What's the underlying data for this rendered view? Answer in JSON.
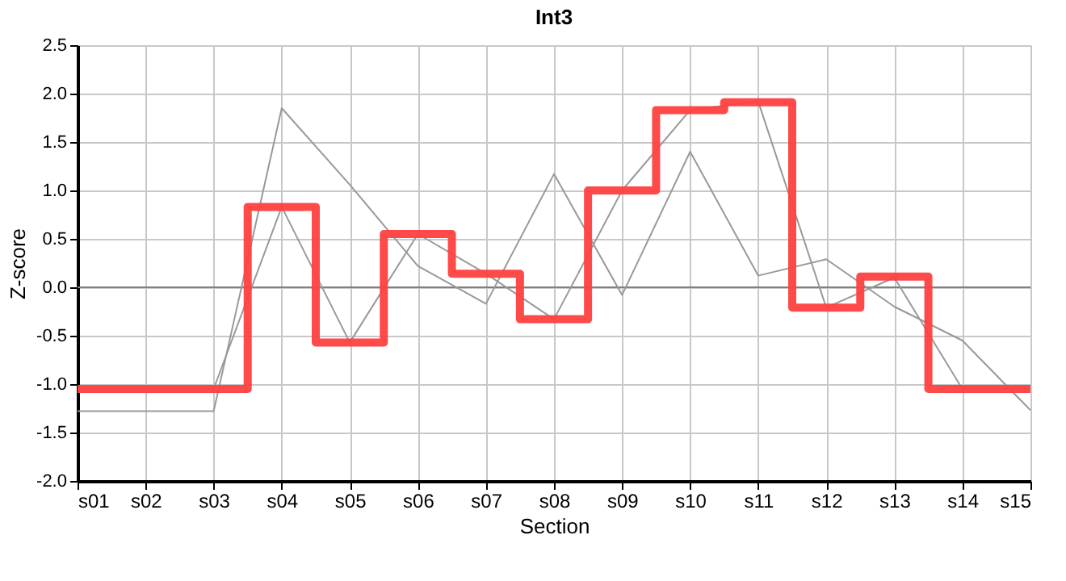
{
  "chart_data": {
    "type": "line",
    "title": "Int3",
    "xlabel": "Section",
    "ylabel": "Z-score",
    "categories": [
      "s01",
      "s02",
      "s03",
      "s04",
      "s05",
      "s06",
      "s07",
      "s08",
      "s09",
      "s10",
      "s11",
      "s12",
      "s13",
      "s14",
      "s15"
    ],
    "series": [
      {
        "color": "#999999",
        "values": [
          -1.28,
          -1.28,
          -1.28,
          1.85,
          1.06,
          0.22,
          -0.17,
          1.17,
          -0.08,
          1.4,
          0.12,
          0.29,
          -0.2,
          -0.55,
          -1.27
        ]
      },
      {
        "color": "#999999",
        "values": [
          -1.05,
          -1.05,
          -1.05,
          0.83,
          -0.57,
          0.55,
          0.14,
          -0.33,
          1.0,
          1.83,
          1.92,
          -0.21,
          0.1,
          -1.05,
          -1.05
        ]
      },
      {
        "type": "step",
        "color": "#ff4040",
        "values": [
          -1.05,
          -1.05,
          -1.05,
          0.83,
          -0.57,
          0.55,
          0.14,
          -0.33,
          1.0,
          1.83,
          1.91,
          -0.21,
          0.11,
          -1.05,
          -1.05
        ]
      }
    ],
    "ylim": [
      -2.0,
      2.5
    ],
    "yticks": [
      {
        "value": -2.0,
        "label": "-2.0"
      },
      {
        "value": -1.5,
        "label": "-1.5"
      },
      {
        "value": -1.0,
        "label": "-1.0"
      },
      {
        "value": -0.5,
        "label": "-0.5"
      },
      {
        "value": 0,
        "label": "0.0"
      },
      {
        "value": 0.5,
        "label": "0.5"
      },
      {
        "value": 1.0,
        "label": "1.0"
      },
      {
        "value": 1.5,
        "label": "1.5"
      },
      {
        "value": 2.0,
        "label": "2.0"
      },
      {
        "value": 2.5,
        "label": "2.5"
      }
    ],
    "ref_lines": [
      {
        "axis": "y",
        "value": 0,
        "color": "#808080"
      }
    ],
    "grid": true
  }
}
